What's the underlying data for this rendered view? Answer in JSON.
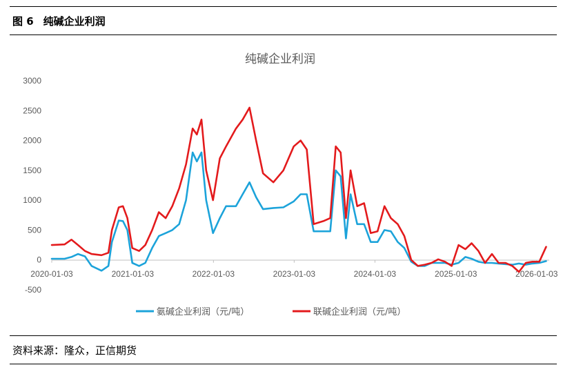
{
  "figure": {
    "number": "图 6",
    "title": "纯碱企业利润",
    "source": "资料来源：隆众，正信期货"
  },
  "chart_data": {
    "type": "line",
    "title": "纯碱企业利润",
    "xlabel": "",
    "ylabel": "",
    "x_ticks": [
      "2020-01-03",
      "2021-01-03",
      "2022-01-03",
      "2023-01-03",
      "2024-01-03",
      "2025-01-03",
      "2026-01-03"
    ],
    "x_range": [
      "2020-01-03",
      "2026-03-01"
    ],
    "ylim": [
      -500,
      3000
    ],
    "y_ticks": [
      -500,
      0,
      500,
      1000,
      1500,
      2000,
      2500,
      3000
    ],
    "grid": false,
    "legend": "bottom",
    "series": [
      {
        "name": "氨碱企业利润（元/吨）",
        "color": "#1CA3DA",
        "points": [
          [
            "2020-01-03",
            20
          ],
          [
            "2020-03-01",
            20
          ],
          [
            "2020-04-01",
            50
          ],
          [
            "2020-05-01",
            100
          ],
          [
            "2020-06-01",
            60
          ],
          [
            "2020-07-01",
            -100
          ],
          [
            "2020-08-15",
            -180
          ],
          [
            "2020-09-15",
            -100
          ],
          [
            "2020-10-01",
            300
          ],
          [
            "2020-11-01",
            660
          ],
          [
            "2020-11-20",
            650
          ],
          [
            "2020-12-10",
            500
          ],
          [
            "2021-01-01",
            -50
          ],
          [
            "2021-02-01",
            -100
          ],
          [
            "2021-03-01",
            -50
          ],
          [
            "2021-04-01",
            200
          ],
          [
            "2021-05-01",
            400
          ],
          [
            "2021-06-01",
            450
          ],
          [
            "2021-07-01",
            500
          ],
          [
            "2021-08-01",
            600
          ],
          [
            "2021-09-01",
            1000
          ],
          [
            "2021-10-01",
            1800
          ],
          [
            "2021-10-20",
            1650
          ],
          [
            "2021-11-10",
            1800
          ],
          [
            "2021-12-01",
            1000
          ],
          [
            "2022-01-01",
            450
          ],
          [
            "2022-02-01",
            700
          ],
          [
            "2022-03-01",
            900
          ],
          [
            "2022-04-15",
            900
          ],
          [
            "2022-05-15",
            1100
          ],
          [
            "2022-06-15",
            1300
          ],
          [
            "2022-07-15",
            1050
          ],
          [
            "2022-08-15",
            850
          ],
          [
            "2022-10-01",
            870
          ],
          [
            "2022-11-15",
            880
          ],
          [
            "2023-01-01",
            980
          ],
          [
            "2023-02-01",
            1100
          ],
          [
            "2023-03-01",
            1100
          ],
          [
            "2023-04-01",
            480
          ],
          [
            "2023-05-15",
            480
          ],
          [
            "2023-06-15",
            480
          ],
          [
            "2023-07-10",
            1500
          ],
          [
            "2023-08-01",
            1400
          ],
          [
            "2023-08-25",
            360
          ],
          [
            "2023-09-15",
            1100
          ],
          [
            "2023-10-15",
            600
          ],
          [
            "2023-11-15",
            600
          ],
          [
            "2023-12-15",
            300
          ],
          [
            "2024-01-15",
            300
          ],
          [
            "2024-02-15",
            500
          ],
          [
            "2024-03-15",
            480
          ],
          [
            "2024-04-15",
            300
          ],
          [
            "2024-05-15",
            200
          ],
          [
            "2024-06-15",
            -30
          ],
          [
            "2024-07-15",
            -100
          ],
          [
            "2024-08-15",
            -100
          ],
          [
            "2024-09-15",
            -50
          ],
          [
            "2024-10-15",
            -50
          ],
          [
            "2024-11-15",
            -50
          ],
          [
            "2024-12-15",
            -80
          ],
          [
            "2025-01-15",
            -50
          ],
          [
            "2025-02-15",
            50
          ],
          [
            "2025-03-15",
            20
          ],
          [
            "2025-04-15",
            -30
          ],
          [
            "2025-05-15",
            -50
          ],
          [
            "2025-06-15",
            -50
          ],
          [
            "2025-07-15",
            -60
          ],
          [
            "2025-08-15",
            -70
          ],
          [
            "2025-09-15",
            -80
          ],
          [
            "2025-10-15",
            -60
          ],
          [
            "2025-11-15",
            -80
          ],
          [
            "2025-12-15",
            -60
          ],
          [
            "2026-01-15",
            -50
          ],
          [
            "2026-02-15",
            -20
          ]
        ]
      },
      {
        "name": "联碱企业利润（元/吨）",
        "color": "#E31A1C",
        "points": [
          [
            "2020-01-03",
            250
          ],
          [
            "2020-03-01",
            260
          ],
          [
            "2020-04-01",
            340
          ],
          [
            "2020-05-01",
            250
          ],
          [
            "2020-06-01",
            150
          ],
          [
            "2020-07-01",
            100
          ],
          [
            "2020-08-15",
            80
          ],
          [
            "2020-09-15",
            120
          ],
          [
            "2020-10-01",
            500
          ],
          [
            "2020-11-01",
            880
          ],
          [
            "2020-11-20",
            900
          ],
          [
            "2020-12-10",
            700
          ],
          [
            "2021-01-01",
            200
          ],
          [
            "2021-02-01",
            150
          ],
          [
            "2021-03-01",
            250
          ],
          [
            "2021-04-01",
            500
          ],
          [
            "2021-05-01",
            800
          ],
          [
            "2021-06-01",
            700
          ],
          [
            "2021-07-01",
            900
          ],
          [
            "2021-08-01",
            1200
          ],
          [
            "2021-09-01",
            1600
          ],
          [
            "2021-10-01",
            2200
          ],
          [
            "2021-10-20",
            2100
          ],
          [
            "2021-11-10",
            2350
          ],
          [
            "2021-12-01",
            1500
          ],
          [
            "2022-01-01",
            1000
          ],
          [
            "2022-02-01",
            1700
          ],
          [
            "2022-03-01",
            1900
          ],
          [
            "2022-04-15",
            2200
          ],
          [
            "2022-05-15",
            2350
          ],
          [
            "2022-06-15",
            2550
          ],
          [
            "2022-07-15",
            2000
          ],
          [
            "2022-08-15",
            1450
          ],
          [
            "2022-10-01",
            1300
          ],
          [
            "2022-11-15",
            1500
          ],
          [
            "2023-01-01",
            1900
          ],
          [
            "2023-02-01",
            2000
          ],
          [
            "2023-03-01",
            1850
          ],
          [
            "2023-04-01",
            600
          ],
          [
            "2023-05-15",
            650
          ],
          [
            "2023-06-15",
            700
          ],
          [
            "2023-07-10",
            1900
          ],
          [
            "2023-08-01",
            1800
          ],
          [
            "2023-08-25",
            700
          ],
          [
            "2023-09-15",
            1500
          ],
          [
            "2023-10-15",
            900
          ],
          [
            "2023-11-15",
            950
          ],
          [
            "2023-12-15",
            450
          ],
          [
            "2024-01-15",
            480
          ],
          [
            "2024-02-15",
            900
          ],
          [
            "2024-03-15",
            700
          ],
          [
            "2024-04-15",
            600
          ],
          [
            "2024-05-15",
            400
          ],
          [
            "2024-06-15",
            0
          ],
          [
            "2024-07-15",
            -100
          ],
          [
            "2024-08-15",
            -80
          ],
          [
            "2024-09-15",
            -50
          ],
          [
            "2024-10-15",
            10
          ],
          [
            "2024-11-15",
            -30
          ],
          [
            "2024-12-15",
            -100
          ],
          [
            "2025-01-15",
            250
          ],
          [
            "2025-02-15",
            180
          ],
          [
            "2025-03-15",
            280
          ],
          [
            "2025-04-15",
            150
          ],
          [
            "2025-05-15",
            -50
          ],
          [
            "2025-06-15",
            100
          ],
          [
            "2025-07-15",
            -50
          ],
          [
            "2025-08-15",
            -50
          ],
          [
            "2025-09-15",
            -100
          ],
          [
            "2025-10-15",
            -200
          ],
          [
            "2025-11-15",
            -50
          ],
          [
            "2025-12-15",
            -30
          ],
          [
            "2026-01-15",
            -30
          ],
          [
            "2026-02-15",
            220
          ]
        ]
      }
    ]
  }
}
